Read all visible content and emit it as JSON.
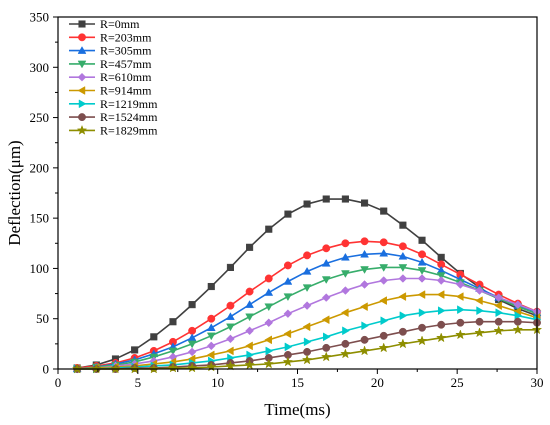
{
  "chart_data": {
    "type": "line",
    "xlabel": "Time(ms)",
    "ylabel": "Deflection(μm)",
    "xlim": [
      0,
      30
    ],
    "ylim": [
      0,
      350
    ],
    "xticks": [
      0,
      5,
      10,
      15,
      20,
      25,
      30
    ],
    "yticks": [
      0,
      50,
      100,
      150,
      200,
      250,
      300,
      350
    ],
    "grid": false,
    "legend_position": "top-left",
    "x": [
      1.2,
      2.4,
      3.6,
      4.8,
      6.0,
      7.2,
      8.4,
      9.6,
      10.8,
      12.0,
      13.2,
      14.4,
      15.6,
      16.8,
      18.0,
      19.2,
      20.4,
      21.6,
      22.8,
      24.0,
      25.2,
      26.4,
      27.6,
      28.8,
      30.0
    ],
    "series": [
      {
        "name": "R=0mm",
        "color": "#404040",
        "marker": "square",
        "values": [
          1,
          4,
          10,
          19,
          32,
          47,
          64,
          82,
          101,
          121,
          139,
          154,
          164,
          169,
          169,
          165,
          157,
          143,
          128,
          111,
          95,
          81,
          69,
          60,
          53
        ]
      },
      {
        "name": "R=203mm",
        "color": "#ff3333",
        "marker": "circle",
        "values": [
          1,
          3,
          6,
          11,
          18,
          27,
          38,
          50,
          63,
          77,
          90,
          103,
          113,
          120,
          125,
          127,
          126,
          122,
          114,
          104,
          94,
          84,
          74,
          65,
          57
        ]
      },
      {
        "name": "R=305mm",
        "color": "#1a6fdf",
        "marker": "triangle-up",
        "values": [
          0,
          2,
          5,
          9,
          15,
          22,
          31,
          41,
          52,
          64,
          76,
          87,
          97,
          105,
          111,
          114,
          115,
          112,
          106,
          98,
          89,
          80,
          71,
          63,
          56
        ]
      },
      {
        "name": "R=457mm",
        "color": "#37ad6b",
        "marker": "triangle-down",
        "values": [
          0,
          2,
          4,
          7,
          12,
          18,
          25,
          33,
          42,
          52,
          62,
          72,
          81,
          89,
          95,
          99,
          101,
          101,
          98,
          93,
          86,
          78,
          70,
          62,
          55
        ]
      },
      {
        "name": "R=610mm",
        "color": "#b177de",
        "marker": "diamond",
        "values": [
          0,
          1,
          3,
          5,
          8,
          12,
          17,
          23,
          30,
          38,
          46,
          55,
          63,
          71,
          78,
          84,
          88,
          90,
          90,
          88,
          84,
          78,
          71,
          64,
          57
        ]
      },
      {
        "name": "R=914mm",
        "color": "#cc9900",
        "marker": "triangle-left",
        "values": [
          0,
          1,
          2,
          3,
          5,
          7,
          10,
          14,
          18,
          23,
          29,
          35,
          42,
          49,
          56,
          62,
          68,
          72,
          74,
          74,
          72,
          68,
          63,
          57,
          51
        ]
      },
      {
        "name": "R=1219mm",
        "color": "#00cbcc",
        "marker": "triangle-right",
        "values": [
          0,
          0,
          1,
          2,
          3,
          4,
          6,
          8,
          11,
          14,
          18,
          22,
          27,
          32,
          38,
          43,
          48,
          53,
          56,
          58,
          59,
          58,
          56,
          53,
          49
        ]
      },
      {
        "name": "R=1524mm",
        "color": "#7d4e4e",
        "marker": "circle",
        "values": [
          0,
          0,
          0,
          1,
          1,
          2,
          3,
          4,
          6,
          8,
          11,
          14,
          17,
          21,
          25,
          29,
          33,
          37,
          41,
          44,
          46,
          47,
          47,
          47,
          46
        ]
      },
      {
        "name": "R=1829mm",
        "color": "#8e8e00",
        "marker": "star",
        "values": [
          0,
          0,
          0,
          0,
          0,
          1,
          1,
          2,
          3,
          4,
          5,
          7,
          9,
          12,
          15,
          18,
          21,
          25,
          28,
          31,
          34,
          36,
          38,
          39,
          39
        ]
      }
    ]
  }
}
